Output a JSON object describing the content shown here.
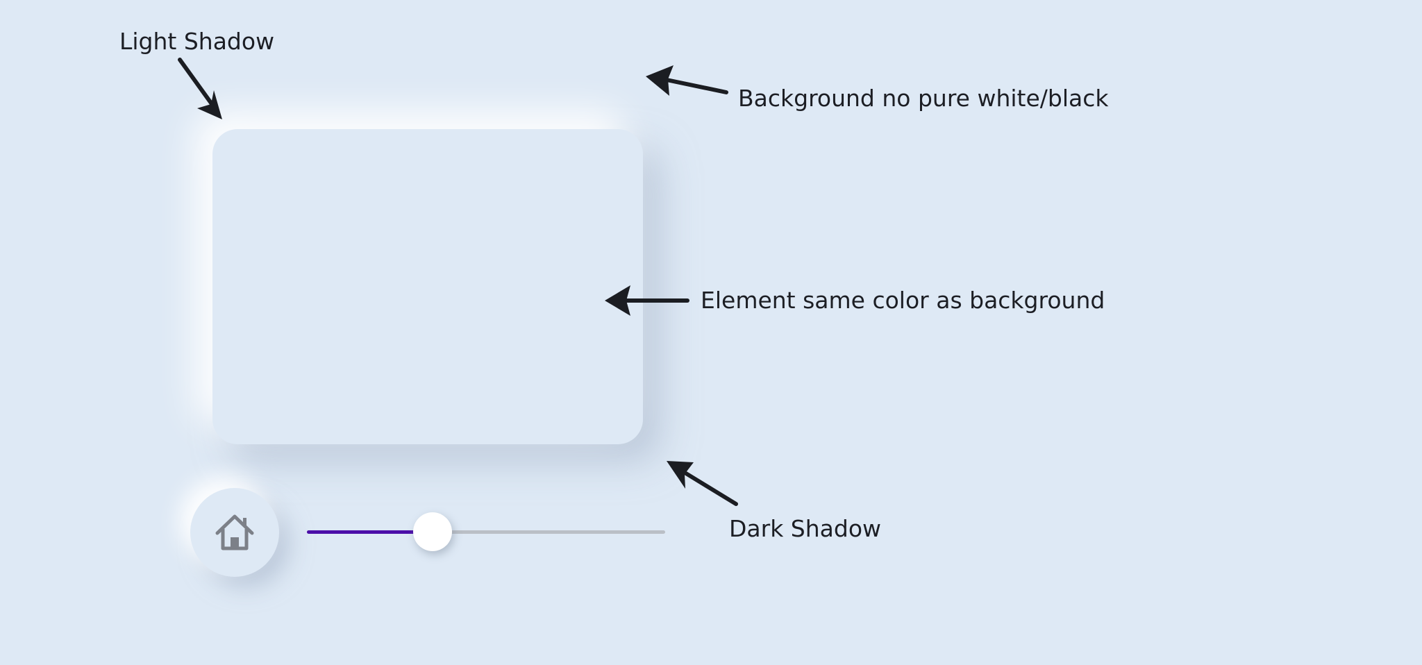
{
  "annotations": {
    "light_shadow": "Light Shadow",
    "background": "Background no pure white/black",
    "element_color": "Element same color as background",
    "dark_shadow": "Dark Shadow"
  },
  "slider": {
    "value_fraction": 0.35,
    "fill_color": "#4b0ea8",
    "track_color": "#babfc6",
    "thumb_color": "#ffffff"
  },
  "icons": {
    "home": "home-icon"
  },
  "colors": {
    "background": "#dee9f5",
    "text": "#1c1e24",
    "arrow": "#1b1d22"
  }
}
